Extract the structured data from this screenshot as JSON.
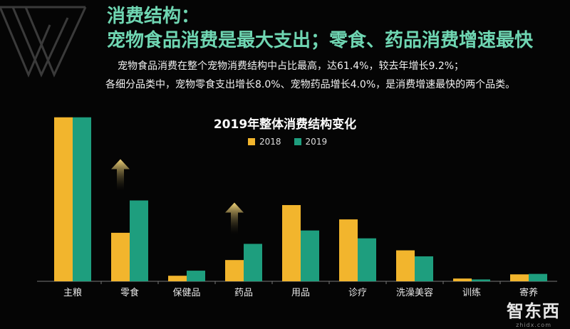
{
  "header": {
    "heading_1": "消费结构：",
    "heading_2": "宠物食品消费是最大支出；零食、药品消费增速最快",
    "line_1": "宠物食品消费在整个宠物消费结构中占比最高，达61.4%，较去年增长9.2%；",
    "line_2": "各细分品类中，宠物零食支出增长8.0%、宠物药品增长4.0%，是消费增速最快的两个品类。"
  },
  "brand": {
    "logo_text": "智东西",
    "logo_sub": "zhidx.com"
  },
  "chart_data": {
    "type": "bar",
    "title": "2019年整体消费结构变化",
    "categories": [
      "主粮",
      "零食",
      "保健品",
      "药品",
      "用品",
      "诊疗",
      "洗澡美容",
      "训练",
      "寄养"
    ],
    "series": [
      {
        "name": "2018",
        "color": "#f2b52d",
        "values": [
          35.5,
          10.5,
          1.2,
          4.6,
          16.5,
          13.4,
          6.7,
          0.6,
          1.5
        ]
      },
      {
        "name": "2019",
        "color": "#1e9e7e",
        "values": [
          35.5,
          17.5,
          2.3,
          8.1,
          11.0,
          9.3,
          5.4,
          0.4,
          1.6
        ]
      }
    ],
    "ylim": [
      0,
      37
    ],
    "grid": false,
    "legend": "top-center",
    "annotations": [
      {
        "type": "up-arrow",
        "category": "零食"
      },
      {
        "type": "up-arrow",
        "category": "药品"
      }
    ],
    "xlabel": "",
    "ylabel": ""
  }
}
